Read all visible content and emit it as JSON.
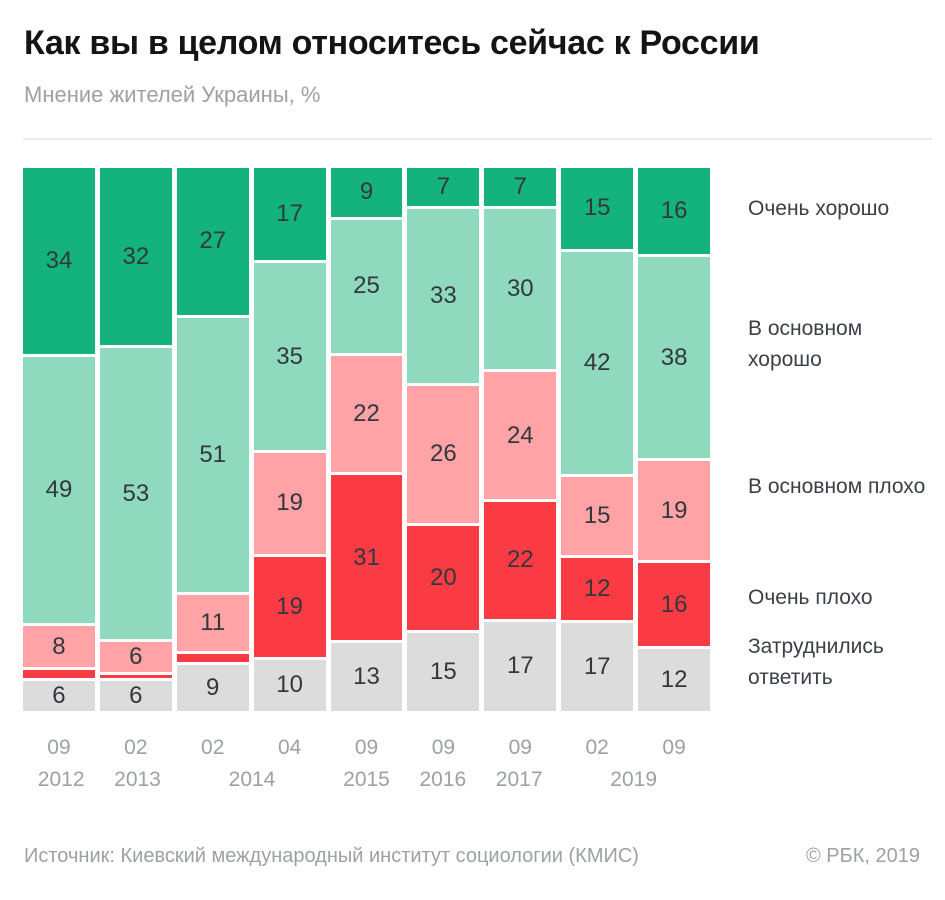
{
  "page": {
    "title": "Как вы в целом относитесь сейчас к России",
    "subtitle": "Мнение жителей Украины, %",
    "source": "Источник: Киевский международный институт социологии (КМИС)",
    "copyright": "© РБК, 2019"
  },
  "colors": {
    "very_good": "#14b37d",
    "mostly_good": "#8fd9be",
    "mostly_bad": "#ffa3a6",
    "very_bad": "#fb3b43",
    "no_answer": "#dcdcdc",
    "divider": "#ebebeb",
    "bar_label": "#33383d",
    "muted_text": "#9da1a5"
  },
  "chart_data": {
    "type": "bar",
    "stacked": true,
    "unit": "%",
    "orientation": "vertical",
    "grid": false,
    "legend_position": "right",
    "label_hidden_below": 4,
    "categories_month": [
      "09",
      "02",
      "02",
      "04",
      "09",
      "09",
      "09",
      "02",
      "09"
    ],
    "year_groups": [
      {
        "label": "2012",
        "columns": [
          0
        ]
      },
      {
        "label": "2013",
        "columns": [
          1
        ]
      },
      {
        "label": "2014",
        "columns": [
          2,
          3
        ]
      },
      {
        "label": "2015",
        "columns": [
          4
        ]
      },
      {
        "label": "2016",
        "columns": [
          5
        ]
      },
      {
        "label": "2017",
        "columns": [
          6
        ]
      },
      {
        "label": "2019",
        "columns": [
          7,
          8
        ]
      }
    ],
    "series": [
      {
        "key": "very_good",
        "name": "Очень хорошо",
        "color": "#14b37d",
        "values": [
          34,
          32,
          27,
          17,
          9,
          7,
          7,
          15,
          16
        ]
      },
      {
        "key": "mostly_good",
        "name": "В основном хорошо",
        "color": "#8fd9be",
        "values": [
          49,
          53,
          51,
          35,
          25,
          33,
          30,
          42,
          38
        ]
      },
      {
        "key": "mostly_bad",
        "name": "В основном плохо",
        "color": "#ffa3a6",
        "values": [
          8,
          6,
          11,
          19,
          22,
          26,
          24,
          15,
          19
        ]
      },
      {
        "key": "very_bad",
        "name": "Очень плохо",
        "color": "#fb3b43",
        "values": [
          2,
          1,
          2,
          19,
          31,
          20,
          22,
          12,
          16
        ]
      },
      {
        "key": "no_answer",
        "name": "Затруднились ответить",
        "color": "#dcdcdc",
        "values": [
          6,
          6,
          9,
          10,
          13,
          15,
          17,
          17,
          12
        ]
      }
    ]
  }
}
